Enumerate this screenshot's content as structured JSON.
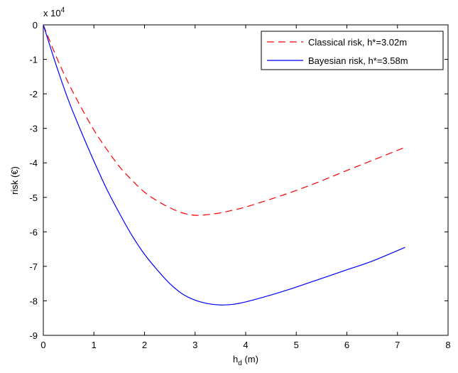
{
  "chart_data": {
    "type": "line",
    "title": "",
    "xlabel_main": "h",
    "xlabel_sub": "d",
    "xlabel_unit": " (m)",
    "ylabel": "risk (€)",
    "y_multiplier": "x 10",
    "y_multiplier_exp": "4",
    "xlim": [
      0,
      8
    ],
    "ylim": [
      -9,
      0
    ],
    "xticks": [
      0,
      1,
      2,
      3,
      4,
      5,
      6,
      7,
      8
    ],
    "yticks": [
      0,
      -1,
      -2,
      -3,
      -4,
      -5,
      -6,
      -7,
      -8,
      -9
    ],
    "xtick_labels": [
      "0",
      "1",
      "2",
      "3",
      "4",
      "5",
      "6",
      "7",
      "8"
    ],
    "ytick_labels": [
      "0",
      "-1",
      "-2",
      "-3",
      "-4",
      "-5",
      "-6",
      "-7",
      "-8",
      "-9"
    ],
    "grid": false,
    "legend_position": "top-right",
    "series": [
      {
        "name": "Classical risk, h*=3.02m",
        "color": "#ff0000",
        "style": "dashed",
        "x": [
          0,
          0.25,
          0.5,
          0.75,
          1.0,
          1.25,
          1.5,
          1.75,
          2.0,
          2.25,
          2.5,
          2.75,
          3.0,
          3.25,
          3.5,
          3.75,
          4.0,
          4.5,
          5.0,
          5.5,
          6.0,
          6.5,
          7.15
        ],
        "y": [
          0,
          -0.9,
          -1.7,
          -2.4,
          -3.05,
          -3.6,
          -4.1,
          -4.5,
          -4.85,
          -5.1,
          -5.3,
          -5.45,
          -5.52,
          -5.5,
          -5.45,
          -5.37,
          -5.28,
          -5.05,
          -4.8,
          -4.52,
          -4.22,
          -3.93,
          -3.55
        ]
      },
      {
        "name": "Bayesian risk, h*=3.58m",
        "color": "#0000ff",
        "style": "solid",
        "x": [
          0,
          0.25,
          0.5,
          0.75,
          1.0,
          1.25,
          1.5,
          1.75,
          2.0,
          2.25,
          2.5,
          2.75,
          3.0,
          3.25,
          3.5,
          3.75,
          4.0,
          4.5,
          5.0,
          5.5,
          6.0,
          6.5,
          7.15
        ],
        "y": [
          0,
          -1.15,
          -2.2,
          -3.1,
          -3.95,
          -4.75,
          -5.45,
          -6.1,
          -6.65,
          -7.1,
          -7.5,
          -7.8,
          -7.98,
          -8.08,
          -8.12,
          -8.1,
          -8.03,
          -7.83,
          -7.6,
          -7.35,
          -7.1,
          -6.85,
          -6.45
        ]
      }
    ]
  }
}
